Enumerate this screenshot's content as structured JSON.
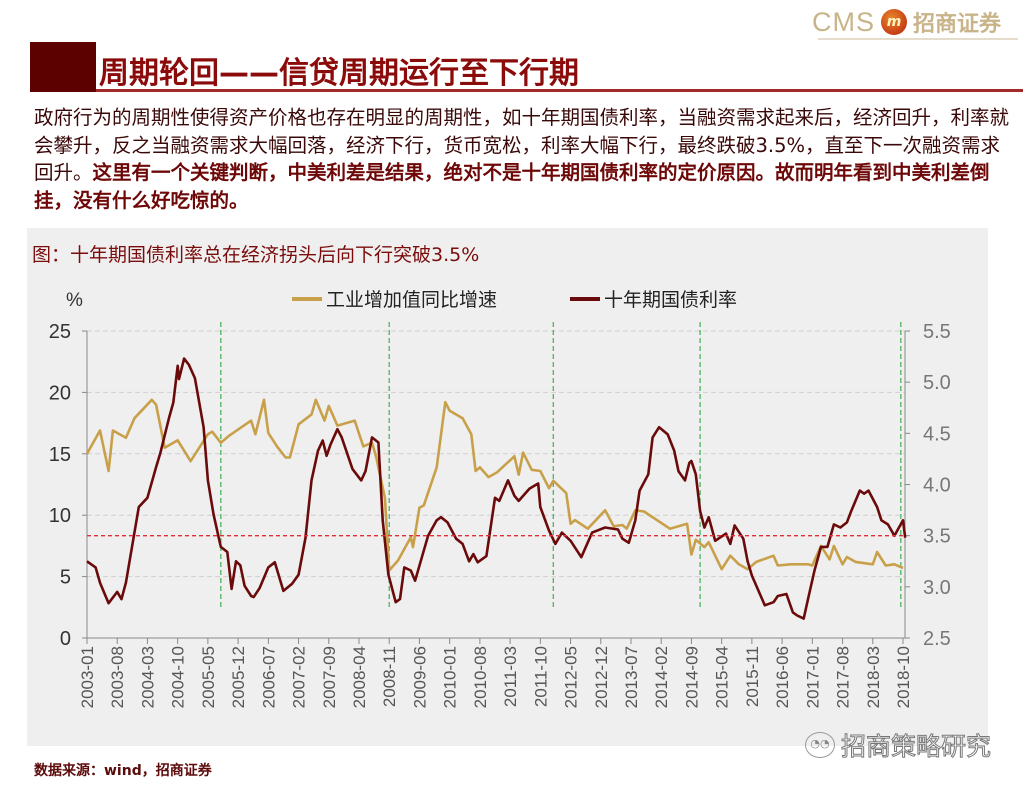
{
  "header": {
    "logo_en": "CMS",
    "logo_mark": "m",
    "logo_cn": "招商证券",
    "title": "周期轮回——信贷周期运行至下行期"
  },
  "paragraph": {
    "part1": "政府行为的周期性使得资产价格也存在明显的周期性，如十年期国债利率，当融资需求起来后，经济回升，利率就会攀升，反之当融资需求大幅回落，经济下行，货币宽松，利率大幅下行，最终跌破3.5%，直至下一次融资需求回升。",
    "part2": "这里有一个关键判断，中美利差是结果，绝对不是十年期国债利率的定价原因。故而明年看到中美利差倒挂，没有什么好吃惊的。"
  },
  "source": "数据来源：wind，招商证券",
  "watermark": "招商策略研究",
  "colors": {
    "industrial": "#c9a04a",
    "bond": "#6b0a0a",
    "threshold": "#e0303a",
    "cycle_marker": "#3cb050",
    "accent": "#8b0a0a"
  },
  "chart_data": {
    "type": "line",
    "title": "图：十年期国债利率总在经济拐头后向下行突破3.5%",
    "left_axis_label": "%",
    "x_origin": "2003-01",
    "x_unit": "months since x_origin",
    "x_range": [
      0,
      189
    ],
    "x_tick_labels": [
      "2003-01",
      "2003-08",
      "2004-03",
      "2004-10",
      "2005-05",
      "2005-12",
      "2006-07",
      "2007-02",
      "2007-09",
      "2008-04",
      "2008-11",
      "2009-06",
      "2010-01",
      "2010-08",
      "2011-03",
      "2011-10",
      "2012-05",
      "2012-12",
      "2013-07",
      "2014-02",
      "2014-09",
      "2015-04",
      "2015-11",
      "2016-06",
      "2017-01",
      "2017-08",
      "2018-03",
      "2018-10"
    ],
    "ylim_left": [
      0,
      25
    ],
    "yticks_left": [
      "0",
      "5",
      "10",
      "15",
      "20",
      "25"
    ],
    "ylim_right": [
      2.5,
      5.5
    ],
    "yticks_right": [
      "2.5",
      "3.0",
      "3.5",
      "4.0",
      "4.5",
      "5.0",
      "5.5"
    ],
    "legend_position": "top-center",
    "threshold_right": 3.5,
    "cycle_markers": [
      31,
      70,
      108,
      142,
      188.5
    ],
    "series": [
      {
        "name": "工业增加值同比增速",
        "axis": "left",
        "points": [
          [
            0,
            15.0
          ],
          [
            3,
            16.9
          ],
          [
            5,
            13.6
          ],
          [
            6,
            16.9
          ],
          [
            9,
            16.3
          ],
          [
            11,
            17.9
          ],
          [
            15,
            19.4
          ],
          [
            16,
            19.0
          ],
          [
            18,
            15.5
          ],
          [
            21,
            16.1
          ],
          [
            24,
            14.4
          ],
          [
            28,
            16.6
          ],
          [
            29,
            16.8
          ],
          [
            31,
            15.9
          ],
          [
            33,
            16.5
          ],
          [
            38,
            17.7
          ],
          [
            39,
            16.6
          ],
          [
            41,
            19.4
          ],
          [
            42,
            16.7
          ],
          [
            44,
            15.6
          ],
          [
            46,
            14.7
          ],
          [
            47,
            14.7
          ],
          [
            49,
            17.4
          ],
          [
            52,
            18.2
          ],
          [
            53,
            19.4
          ],
          [
            55,
            17.7
          ],
          [
            56,
            18.9
          ],
          [
            58,
            17.3
          ],
          [
            62,
            17.7
          ],
          [
            64,
            15.6
          ],
          [
            66,
            15.9
          ],
          [
            67,
            14.7
          ],
          [
            69,
            11.4
          ],
          [
            70,
            5.5
          ],
          [
            72,
            6.3
          ],
          [
            75,
            8.2
          ],
          [
            75.5,
            7.4
          ],
          [
            77,
            10.6
          ],
          [
            78,
            10.8
          ],
          [
            81,
            13.9
          ],
          [
            83,
            19.2
          ],
          [
            84,
            18.5
          ],
          [
            87,
            17.9
          ],
          [
            89,
            16.6
          ],
          [
            90,
            13.6
          ],
          [
            91,
            13.9
          ],
          [
            93,
            13.1
          ],
          [
            95,
            13.5
          ],
          [
            99,
            14.8
          ],
          [
            100,
            13.3
          ],
          [
            101,
            15.1
          ],
          [
            103,
            13.7
          ],
          [
            105,
            13.6
          ],
          [
            107,
            12.2
          ],
          [
            108,
            12.8
          ],
          [
            111,
            11.8
          ],
          [
            112,
            9.3
          ],
          [
            113,
            9.6
          ],
          [
            116,
            8.9
          ],
          [
            120,
            10.4
          ],
          [
            122,
            9.1
          ],
          [
            124,
            9.2
          ],
          [
            125,
            8.9
          ],
          [
            127,
            10.4
          ],
          [
            129,
            10.3
          ],
          [
            135,
            8.9
          ],
          [
            139,
            9.3
          ],
          [
            140,
            6.8
          ],
          [
            141,
            8.0
          ],
          [
            143,
            7.4
          ],
          [
            144,
            7.8
          ],
          [
            147,
            5.6
          ],
          [
            149,
            6.7
          ],
          [
            151,
            6.0
          ],
          [
            153,
            5.6
          ],
          [
            155,
            6.2
          ],
          [
            159,
            6.7
          ],
          [
            160,
            5.9
          ],
          [
            163,
            6.0
          ],
          [
            167,
            6.0
          ],
          [
            168,
            5.9
          ],
          [
            170,
            7.5
          ],
          [
            172,
            6.4
          ],
          [
            173,
            7.5
          ],
          [
            175,
            6.0
          ],
          [
            176,
            6.6
          ],
          [
            178,
            6.2
          ],
          [
            182,
            6.0
          ],
          [
            183,
            7.0
          ],
          [
            185,
            5.9
          ],
          [
            187,
            6.0
          ],
          [
            189,
            5.7
          ]
        ]
      },
      {
        "name": "十年期国债利率",
        "axis": "right",
        "points": [
          [
            0,
            3.25
          ],
          [
            2,
            3.19
          ],
          [
            3,
            3.04
          ],
          [
            5,
            2.84
          ],
          [
            7,
            2.95
          ],
          [
            8,
            2.88
          ],
          [
            9,
            3.04
          ],
          [
            12,
            3.78
          ],
          [
            14,
            3.87
          ],
          [
            16,
            4.17
          ],
          [
            17,
            4.31
          ],
          [
            19,
            4.65
          ],
          [
            20,
            4.8
          ],
          [
            21,
            5.16
          ],
          [
            21.3,
            5.03
          ],
          [
            22.5,
            5.23
          ],
          [
            23.6,
            5.17
          ],
          [
            25,
            5.04
          ],
          [
            27,
            4.56
          ],
          [
            28,
            4.04
          ],
          [
            29.3,
            3.71
          ],
          [
            31,
            3.39
          ],
          [
            32.5,
            3.34
          ],
          [
            33.5,
            2.98
          ],
          [
            34.5,
            3.25
          ],
          [
            35.5,
            3.21
          ],
          [
            36.5,
            3.01
          ],
          [
            38,
            2.91
          ],
          [
            38.6,
            2.9
          ],
          [
            40,
            2.99
          ],
          [
            42,
            3.19
          ],
          [
            43.5,
            3.24
          ],
          [
            45.5,
            2.96
          ],
          [
            47.5,
            3.03
          ],
          [
            49,
            3.12
          ],
          [
            50.6,
            3.48
          ],
          [
            52,
            4.04
          ],
          [
            53.5,
            4.33
          ],
          [
            54.6,
            4.43
          ],
          [
            55.5,
            4.28
          ],
          [
            56.4,
            4.39
          ],
          [
            58,
            4.54
          ],
          [
            59,
            4.46
          ],
          [
            61.5,
            4.15
          ],
          [
            63.5,
            4.04
          ],
          [
            64.5,
            4.13
          ],
          [
            66,
            4.46
          ],
          [
            67.5,
            4.41
          ],
          [
            68.5,
            3.65
          ],
          [
            69.8,
            3.12
          ],
          [
            71.5,
            2.85
          ],
          [
            72.5,
            2.88
          ],
          [
            73.5,
            3.19
          ],
          [
            75,
            3.16
          ],
          [
            76,
            3.06
          ],
          [
            79,
            3.5
          ],
          [
            81,
            3.65
          ],
          [
            82,
            3.68
          ],
          [
            83.5,
            3.63
          ],
          [
            85.5,
            3.47
          ],
          [
            87,
            3.42
          ],
          [
            88.5,
            3.25
          ],
          [
            89.5,
            3.32
          ],
          [
            90.5,
            3.24
          ],
          [
            92.5,
            3.3
          ],
          [
            94.5,
            3.87
          ],
          [
            95.5,
            3.84
          ],
          [
            97.5,
            4.04
          ],
          [
            99,
            3.89
          ],
          [
            100,
            3.84
          ],
          [
            102.5,
            3.96
          ],
          [
            104.5,
            4.01
          ],
          [
            105,
            3.78
          ],
          [
            107,
            3.55
          ],
          [
            108.5,
            3.42
          ],
          [
            110,
            3.53
          ],
          [
            112,
            3.45
          ],
          [
            114.5,
            3.29
          ],
          [
            117,
            3.53
          ],
          [
            120,
            3.58
          ],
          [
            123,
            3.56
          ],
          [
            124,
            3.47
          ],
          [
            125.5,
            3.43
          ],
          [
            127,
            3.65
          ],
          [
            128,
            3.94
          ],
          [
            130,
            4.1
          ],
          [
            131,
            4.46
          ],
          [
            132.5,
            4.56
          ],
          [
            134.5,
            4.49
          ],
          [
            136,
            4.33
          ],
          [
            137,
            4.13
          ],
          [
            138.5,
            4.04
          ],
          [
            139.5,
            4.21
          ],
          [
            140,
            4.23
          ],
          [
            141,
            4.1
          ],
          [
            142,
            3.74
          ],
          [
            143,
            3.58
          ],
          [
            144,
            3.68
          ],
          [
            145.5,
            3.45
          ],
          [
            148,
            3.52
          ],
          [
            149,
            3.42
          ],
          [
            150,
            3.6
          ],
          [
            152,
            3.47
          ],
          [
            153,
            3.25
          ],
          [
            154,
            3.11
          ],
          [
            157,
            2.82
          ],
          [
            159,
            2.85
          ],
          [
            160,
            2.91
          ],
          [
            162,
            2.93
          ],
          [
            163.5,
            2.75
          ],
          [
            164.5,
            2.72
          ],
          [
            166,
            2.69
          ],
          [
            167,
            2.88
          ],
          [
            168.5,
            3.16
          ],
          [
            170,
            3.39
          ],
          [
            171.5,
            3.39
          ],
          [
            173,
            3.61
          ],
          [
            174.5,
            3.58
          ],
          [
            176,
            3.63
          ],
          [
            177,
            3.74
          ],
          [
            179,
            3.94
          ],
          [
            180,
            3.91
          ],
          [
            181,
            3.94
          ],
          [
            183,
            3.78
          ],
          [
            184,
            3.65
          ],
          [
            185.5,
            3.61
          ],
          [
            187,
            3.5
          ],
          [
            189,
            3.65
          ],
          [
            189.5,
            3.48
          ]
        ]
      }
    ]
  }
}
